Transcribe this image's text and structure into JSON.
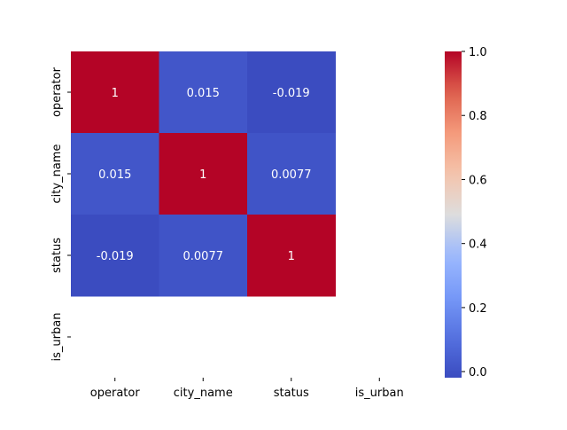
{
  "chart_data": {
    "type": "heatmap",
    "title": "",
    "xlabel": "",
    "ylabel": "",
    "x_labels": [
      "operator",
      "city_name",
      "status",
      "is_urban"
    ],
    "y_labels": [
      "operator",
      "city_name",
      "status",
      "is_urban"
    ],
    "values": [
      [
        1,
        0.015,
        -0.019,
        null
      ],
      [
        0.015,
        1,
        0.0077,
        null
      ],
      [
        -0.019,
        0.0077,
        1,
        null
      ],
      [
        null,
        null,
        null,
        null
      ]
    ],
    "cell_labels": [
      [
        "1",
        "0.015",
        "-0.019",
        ""
      ],
      [
        "0.015",
        "1",
        "0.0077",
        ""
      ],
      [
        "-0.019",
        "0.0077",
        "1",
        ""
      ],
      [
        "",
        "",
        "",
        ""
      ]
    ],
    "colormap": "coolwarm",
    "color_range": [
      -0.019,
      1
    ],
    "colorbar": {
      "ticks": [
        0.0,
        0.2,
        0.4,
        0.6,
        0.8,
        1.0
      ],
      "tick_labels": [
        "0.0",
        "0.2",
        "0.4",
        "0.6",
        "0.8",
        "1.0"
      ]
    },
    "missing_cells_rendered_as": "blank",
    "colors": {
      "low": "#3b4cc0",
      "mid": "#dddddd",
      "high": "#b40426"
    }
  }
}
